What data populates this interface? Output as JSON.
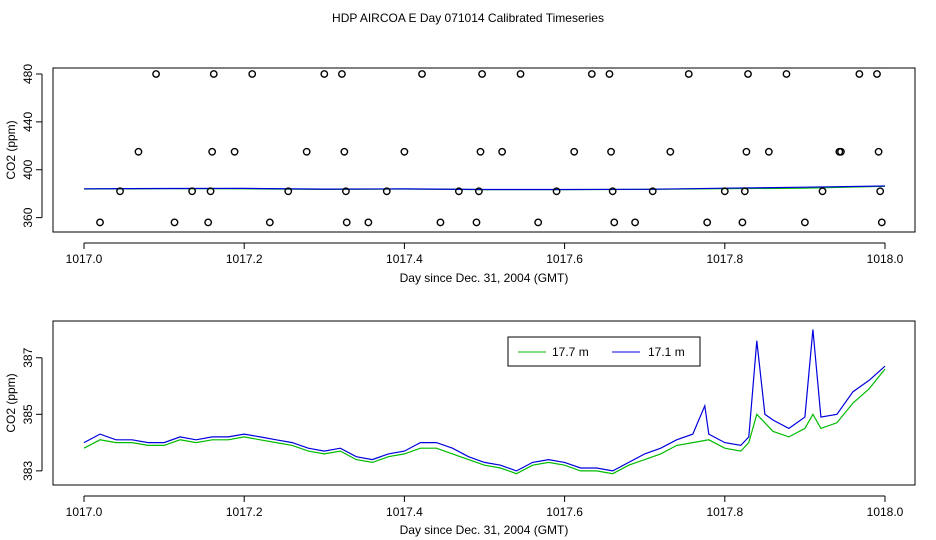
{
  "title": "HDP AIRCOA E  Day 071014  Calibrated Timeseries",
  "chart_data": [
    {
      "type": "line+scatter",
      "xlabel": "Day since Dec. 31, 2004 (GMT)",
      "ylabel": "CO2 (ppm)",
      "xlim": [
        1017.0,
        1018.0
      ],
      "ylim": [
        348,
        485
      ],
      "xticks": [
        "1017.0",
        "1017.2",
        "1017.4",
        "1017.6",
        "1017.8",
        "1018.0"
      ],
      "yticks": [
        "360",
        "400",
        "440",
        "480"
      ],
      "series": [
        {
          "color": "#00bb00",
          "values": [
            [
              1017.0,
              383.9
            ],
            [
              1017.1,
              384.2
            ],
            [
              1017.2,
              384.1
            ],
            [
              1017.3,
              383.6
            ],
            [
              1017.4,
              383.9
            ],
            [
              1017.5,
              383.4
            ],
            [
              1017.6,
              383.4
            ],
            [
              1017.7,
              383.6
            ],
            [
              1017.8,
              384.2
            ],
            [
              1017.9,
              384.6
            ],
            [
              1018.0,
              386.2
            ]
          ]
        },
        {
          "color": "#0000dd",
          "values": [
            [
              1017.0,
              384.1
            ],
            [
              1017.1,
              384.3
            ],
            [
              1017.2,
              384.4
            ],
            [
              1017.3,
              383.8
            ],
            [
              1017.4,
              384.0
            ],
            [
              1017.5,
              383.5
            ],
            [
              1017.6,
              383.5
            ],
            [
              1017.7,
              383.7
            ],
            [
              1017.8,
              384.6
            ],
            [
              1017.9,
              385.4
            ],
            [
              1018.0,
              386.4
            ]
          ]
        }
      ],
      "scatter": [
        [
          1017.02,
          356
        ],
        [
          1017.045,
          382
        ],
        [
          1017.068,
          415
        ],
        [
          1017.09,
          480
        ],
        [
          1017.113,
          356
        ],
        [
          1017.135,
          382
        ],
        [
          1017.155,
          356
        ],
        [
          1017.158,
          382
        ],
        [
          1017.16,
          415
        ],
        [
          1017.162,
          480
        ],
        [
          1017.188,
          415
        ],
        [
          1017.21,
          480
        ],
        [
          1017.232,
          356
        ],
        [
          1017.255,
          382
        ],
        [
          1017.278,
          415
        ],
        [
          1017.3,
          480
        ],
        [
          1017.322,
          480
        ],
        [
          1017.325,
          415
        ],
        [
          1017.327,
          382
        ],
        [
          1017.328,
          356
        ],
        [
          1017.355,
          356
        ],
        [
          1017.378,
          382
        ],
        [
          1017.4,
          415
        ],
        [
          1017.422,
          480
        ],
        [
          1017.445,
          356
        ],
        [
          1017.468,
          382
        ],
        [
          1017.49,
          356
        ],
        [
          1017.493,
          382
        ],
        [
          1017.495,
          415
        ],
        [
          1017.497,
          480
        ],
        [
          1017.522,
          415
        ],
        [
          1017.545,
          480
        ],
        [
          1017.567,
          356
        ],
        [
          1017.59,
          382
        ],
        [
          1017.612,
          415
        ],
        [
          1017.634,
          480
        ],
        [
          1017.656,
          480
        ],
        [
          1017.658,
          415
        ],
        [
          1017.66,
          382
        ],
        [
          1017.662,
          356
        ],
        [
          1017.688,
          356
        ],
        [
          1017.71,
          382
        ],
        [
          1017.732,
          415
        ],
        [
          1017.755,
          480
        ],
        [
          1017.778,
          356
        ],
        [
          1017.8,
          382
        ],
        [
          1017.822,
          356
        ],
        [
          1017.825,
          382
        ],
        [
          1017.827,
          415
        ],
        [
          1017.829,
          480
        ],
        [
          1017.855,
          415
        ],
        [
          1017.877,
          480
        ],
        [
          1017.9,
          356
        ],
        [
          1017.922,
          382
        ],
        [
          1017.943,
          415
        ],
        [
          1017.945,
          415
        ],
        [
          1017.968,
          480
        ],
        [
          1017.99,
          480
        ],
        [
          1017.992,
          415
        ],
        [
          1017.994,
          382
        ],
        [
          1017.996,
          356
        ]
      ]
    },
    {
      "type": "line",
      "xlabel": "Day since Dec. 31, 2004 (GMT)",
      "ylabel": "CO2 (ppm)",
      "xlim": [
        1017.0,
        1018.0
      ],
      "ylim": [
        382.5,
        388.3
      ],
      "xticks": [
        "1017.0",
        "1017.2",
        "1017.4",
        "1017.6",
        "1017.8",
        "1018.0"
      ],
      "yticks": [
        "383",
        "385",
        "387"
      ],
      "legend_position": "top-right",
      "series": [
        {
          "name": "17.7 m",
          "color": "#00bb00",
          "values": [
            [
              1017.0,
              383.8
            ],
            [
              1017.02,
              384.1
            ],
            [
              1017.04,
              384.0
            ],
            [
              1017.06,
              384.0
            ],
            [
              1017.08,
              383.9
            ],
            [
              1017.1,
              383.9
            ],
            [
              1017.12,
              384.1
            ],
            [
              1017.14,
              384.0
            ],
            [
              1017.16,
              384.1
            ],
            [
              1017.18,
              384.1
            ],
            [
              1017.2,
              384.2
            ],
            [
              1017.22,
              384.1
            ],
            [
              1017.24,
              384.0
            ],
            [
              1017.26,
              383.9
            ],
            [
              1017.28,
              383.7
            ],
            [
              1017.3,
              383.6
            ],
            [
              1017.32,
              383.7
            ],
            [
              1017.34,
              383.4
            ],
            [
              1017.36,
              383.3
            ],
            [
              1017.38,
              383.5
            ],
            [
              1017.4,
              383.6
            ],
            [
              1017.42,
              383.8
            ],
            [
              1017.44,
              383.8
            ],
            [
              1017.46,
              383.6
            ],
            [
              1017.48,
              383.4
            ],
            [
              1017.5,
              383.2
            ],
            [
              1017.52,
              383.1
            ],
            [
              1017.54,
              382.9
            ],
            [
              1017.56,
              383.2
            ],
            [
              1017.58,
              383.3
            ],
            [
              1017.6,
              383.2
            ],
            [
              1017.62,
              383.0
            ],
            [
              1017.64,
              383.0
            ],
            [
              1017.66,
              382.9
            ],
            [
              1017.68,
              383.2
            ],
            [
              1017.7,
              383.4
            ],
            [
              1017.72,
              383.6
            ],
            [
              1017.74,
              383.9
            ],
            [
              1017.76,
              384.0
            ],
            [
              1017.78,
              384.1
            ],
            [
              1017.8,
              383.8
            ],
            [
              1017.82,
              383.7
            ],
            [
              1017.83,
              384.0
            ],
            [
              1017.84,
              385.0
            ],
            [
              1017.86,
              384.4
            ],
            [
              1017.88,
              384.2
            ],
            [
              1017.9,
              384.5
            ],
            [
              1017.91,
              385.0
            ],
            [
              1017.92,
              384.5
            ],
            [
              1017.94,
              384.7
            ],
            [
              1017.96,
              385.4
            ],
            [
              1017.98,
              385.9
            ],
            [
              1018.0,
              386.6
            ]
          ]
        },
        {
          "name": "17.1 m",
          "color": "#0000dd",
          "values": [
            [
              1017.0,
              384.0
            ],
            [
              1017.02,
              384.3
            ],
            [
              1017.04,
              384.1
            ],
            [
              1017.06,
              384.1
            ],
            [
              1017.08,
              384.0
            ],
            [
              1017.1,
              384.0
            ],
            [
              1017.12,
              384.2
            ],
            [
              1017.14,
              384.1
            ],
            [
              1017.16,
              384.2
            ],
            [
              1017.18,
              384.2
            ],
            [
              1017.2,
              384.3
            ],
            [
              1017.22,
              384.2
            ],
            [
              1017.24,
              384.1
            ],
            [
              1017.26,
              384.0
            ],
            [
              1017.28,
              383.8
            ],
            [
              1017.3,
              383.7
            ],
            [
              1017.32,
              383.8
            ],
            [
              1017.34,
              383.5
            ],
            [
              1017.36,
              383.4
            ],
            [
              1017.38,
              383.6
            ],
            [
              1017.4,
              383.7
            ],
            [
              1017.42,
              384.0
            ],
            [
              1017.44,
              384.0
            ],
            [
              1017.46,
              383.8
            ],
            [
              1017.48,
              383.5
            ],
            [
              1017.5,
              383.3
            ],
            [
              1017.52,
              383.2
            ],
            [
              1017.54,
              383.0
            ],
            [
              1017.56,
              383.3
            ],
            [
              1017.58,
              383.4
            ],
            [
              1017.6,
              383.3
            ],
            [
              1017.62,
              383.1
            ],
            [
              1017.64,
              383.1
            ],
            [
              1017.66,
              383.0
            ],
            [
              1017.68,
              383.3
            ],
            [
              1017.7,
              383.6
            ],
            [
              1017.72,
              383.8
            ],
            [
              1017.74,
              384.1
            ],
            [
              1017.76,
              384.3
            ],
            [
              1017.775,
              385.3
            ],
            [
              1017.78,
              384.3
            ],
            [
              1017.8,
              384.0
            ],
            [
              1017.82,
              383.9
            ],
            [
              1017.83,
              384.2
            ],
            [
              1017.84,
              387.6
            ],
            [
              1017.85,
              385.0
            ],
            [
              1017.86,
              384.8
            ],
            [
              1017.88,
              384.5
            ],
            [
              1017.9,
              384.9
            ],
            [
              1017.91,
              388.0
            ],
            [
              1017.92,
              384.9
            ],
            [
              1017.94,
              385.0
            ],
            [
              1017.96,
              385.8
            ],
            [
              1017.98,
              386.2
            ],
            [
              1018.0,
              386.7
            ]
          ]
        }
      ]
    }
  ]
}
